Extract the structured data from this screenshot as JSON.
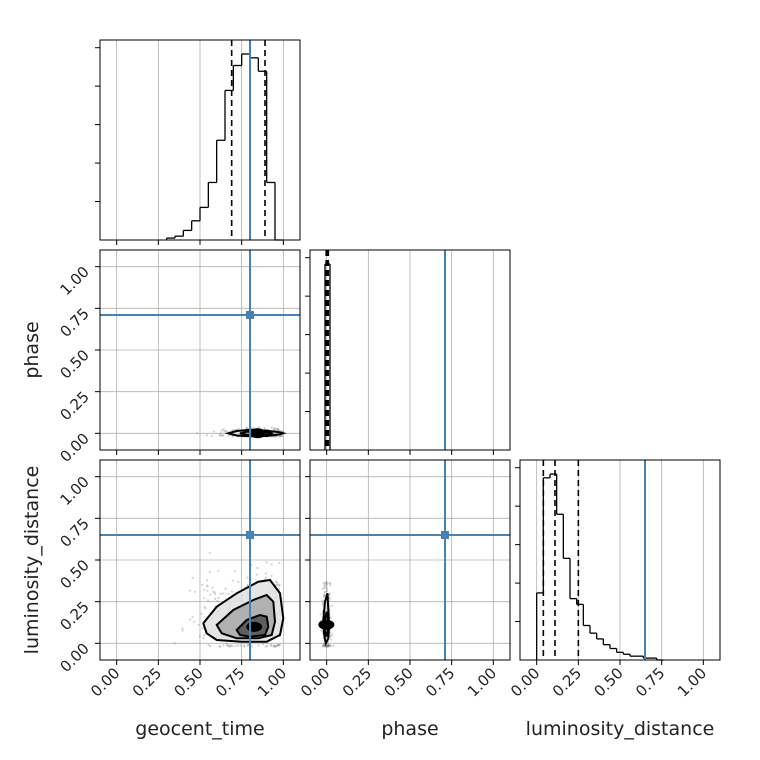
{
  "colors": {
    "truth": "#4682b4",
    "hist": "#000000",
    "grid": "#b0b0b0",
    "axes": "#000000",
    "contour": "#000000",
    "scatter": "#808080"
  },
  "chart_data": {
    "type": "corner",
    "parameters": [
      "geocent_time",
      "phase",
      "luminosity_distance"
    ],
    "tick_labels": [
      "0.00",
      "0.25",
      "0.50",
      "0.75",
      "1.00"
    ],
    "tick_values": [
      0,
      0.25,
      0.5,
      0.75,
      1.0
    ],
    "axis_range": [
      -0.1,
      1.1
    ],
    "truths": {
      "geocent_time": 0.8,
      "phase": 0.71,
      "luminosity_distance": 0.65
    },
    "grid": true,
    "histograms": {
      "geocent_time": {
        "bin_edges": [
          0.3,
          0.35,
          0.4,
          0.45,
          0.5,
          0.55,
          0.6,
          0.65,
          0.7,
          0.75,
          0.8,
          0.85,
          0.9,
          0.95,
          1.0
        ],
        "counts": [
          0.01,
          0.02,
          0.05,
          0.1,
          0.17,
          0.3,
          0.52,
          0.78,
          0.91,
          0.97,
          0.95,
          0.88,
          0.3,
          0
        ],
        "quantiles": [
          0.69,
          0.8,
          0.89
        ]
      },
      "phase": {
        "bin_edges": [
          -0.01,
          0.02
        ],
        "counts": [
          1.0
        ],
        "quantiles": [
          -0.003,
          0.003,
          0.01
        ]
      },
      "luminosity_distance": {
        "bin_edges": [
          0.0,
          0.04,
          0.08,
          0.12,
          0.16,
          0.2,
          0.24,
          0.28,
          0.32,
          0.36,
          0.4,
          0.44,
          0.48,
          0.52,
          0.56,
          0.6,
          0.64,
          0.68,
          0.72,
          0.76
        ],
        "counts": [
          0.35,
          0.95,
          0.97,
          0.76,
          0.53,
          0.32,
          0.29,
          0.18,
          0.14,
          0.11,
          0.08,
          0.06,
          0.04,
          0.03,
          0.02,
          0.02,
          0.01,
          0.01,
          0.0
        ],
        "quantiles": [
          0.04,
          0.11,
          0.25
        ]
      }
    },
    "panels_2d": [
      {
        "x": "geocent_time",
        "y": "phase",
        "contours": [
          [
            [
              0.67,
              0.0
            ],
            [
              0.72,
              -0.013
            ],
            [
              0.8,
              -0.018
            ],
            [
              0.9,
              -0.016
            ],
            [
              0.98,
              -0.006
            ],
            [
              1.0,
              0.0
            ],
            [
              0.98,
              0.006
            ],
            [
              0.9,
              0.016
            ],
            [
              0.8,
              0.022
            ],
            [
              0.72,
              0.014
            ]
          ],
          [
            [
              0.74,
              0.0
            ],
            [
              0.78,
              -0.008
            ],
            [
              0.85,
              -0.01
            ],
            [
              0.92,
              -0.004
            ],
            [
              0.93,
              0.0
            ],
            [
              0.92,
              0.006
            ],
            [
              0.85,
              0.011
            ],
            [
              0.78,
              0.01
            ]
          ]
        ]
      },
      {
        "x": "geocent_time",
        "y": "luminosity_distance",
        "contours": [
          [
            [
              0.52,
              0.12
            ],
            [
              0.6,
              0.22
            ],
            [
              0.72,
              0.3
            ],
            [
              0.85,
              0.37
            ],
            [
              0.92,
              0.38
            ],
            [
              0.98,
              0.3
            ],
            [
              1.0,
              0.15
            ],
            [
              0.98,
              0.05
            ],
            [
              0.9,
              0.01
            ],
            [
              0.75,
              0.01
            ],
            [
              0.6,
              0.02
            ],
            [
              0.54,
              0.06
            ]
          ],
          [
            [
              0.6,
              0.11
            ],
            [
              0.7,
              0.2
            ],
            [
              0.82,
              0.26
            ],
            [
              0.9,
              0.29
            ],
            [
              0.94,
              0.25
            ],
            [
              0.95,
              0.13
            ],
            [
              0.93,
              0.05
            ],
            [
              0.85,
              0.03
            ],
            [
              0.72,
              0.03
            ],
            [
              0.63,
              0.06
            ]
          ],
          [
            [
              0.72,
              0.08
            ],
            [
              0.78,
              0.14
            ],
            [
              0.86,
              0.17
            ],
            [
              0.9,
              0.16
            ],
            [
              0.91,
              0.1
            ],
            [
              0.89,
              0.05
            ],
            [
              0.8,
              0.04
            ],
            [
              0.74,
              0.05
            ]
          ]
        ]
      },
      {
        "x": "phase",
        "y": "luminosity_distance",
        "contours": [
          [
            [
              -0.005,
              0.0
            ],
            [
              -0.015,
              0.05
            ],
            [
              -0.02,
              0.14
            ],
            [
              -0.01,
              0.25
            ],
            [
              0.005,
              0.3
            ],
            [
              0.01,
              0.2
            ],
            [
              0.015,
              0.1
            ],
            [
              0.01,
              0.03
            ]
          ],
          [
            [
              -0.003,
              0.04
            ],
            [
              -0.01,
              0.08
            ],
            [
              -0.01,
              0.15
            ],
            [
              0.0,
              0.19
            ],
            [
              0.006,
              0.14
            ],
            [
              0.006,
              0.07
            ]
          ]
        ]
      }
    ]
  }
}
